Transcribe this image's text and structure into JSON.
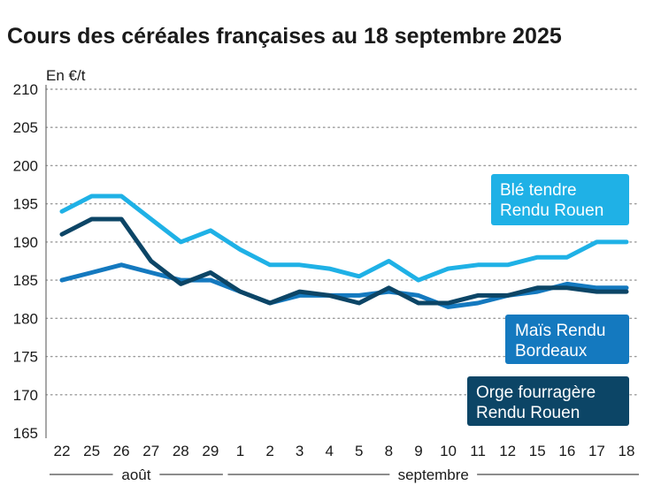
{
  "chart_data": {
    "type": "line",
    "title": "Cours des céréales françaises au 18 septembre 2025",
    "ylabel": "En €/t",
    "ylim": [
      165,
      210
    ],
    "yticks": [
      165,
      170,
      175,
      180,
      185,
      190,
      195,
      200,
      205,
      210
    ],
    "grid": true,
    "categories": [
      "22",
      "25",
      "26",
      "27",
      "28",
      "29",
      "1",
      "2",
      "3",
      "4",
      "5",
      "8",
      "9",
      "10",
      "11",
      "12",
      "15",
      "16",
      "17",
      "18"
    ],
    "month_groups": [
      {
        "label": "août",
        "start": 0,
        "end": 5
      },
      {
        "label": "septembre",
        "start": 6,
        "end": 19
      }
    ],
    "series": [
      {
        "name": "Blé tendre Rendu Rouen",
        "label_lines": [
          "Blé tendre",
          "Rendu Rouen"
        ],
        "color": "#1fb1e6",
        "values": [
          194,
          196,
          196,
          193,
          190,
          191.5,
          189,
          187,
          187,
          186.5,
          185.5,
          187.5,
          185,
          186.5,
          187,
          187,
          188,
          188,
          190,
          190
        ]
      },
      {
        "name": "Maïs Rendu Bordeaux",
        "label_lines": [
          "Maïs Rendu",
          "Bordeaux"
        ],
        "color": "#1479bf",
        "values": [
          185,
          186,
          187,
          186,
          185,
          185,
          183.5,
          182,
          183,
          183,
          183,
          183.5,
          183,
          181.5,
          182,
          183,
          183.5,
          184.5,
          184,
          184
        ]
      },
      {
        "name": "Orge fourragère Rendu Rouen",
        "label_lines": [
          "Orge fourragère",
          "Rendu Rouen"
        ],
        "color": "#0c4566",
        "values": [
          191,
          193,
          193,
          187.5,
          184.5,
          186,
          183.5,
          182,
          183.5,
          183,
          182,
          184,
          182,
          182,
          183,
          183,
          184,
          184,
          183.5,
          183.5
        ]
      }
    ]
  }
}
